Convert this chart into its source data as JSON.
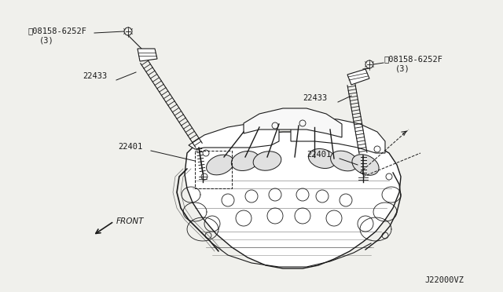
{
  "bg_color": "#f0f0ec",
  "figsize": [
    6.4,
    3.72
  ],
  "dpi": 100,
  "lc": "#1a1a1a",
  "labels": {
    "bolt_left": "⒲08158-6252F",
    "bolt_left_sub": "(3)",
    "coil_left": "22433",
    "plug_left": "22401",
    "bolt_right": "⒲08158-6252F",
    "bolt_right_sub": "(3)",
    "coil_right": "22433",
    "plug_right": "22401",
    "front": "FRONT",
    "code": "J22000VZ"
  }
}
